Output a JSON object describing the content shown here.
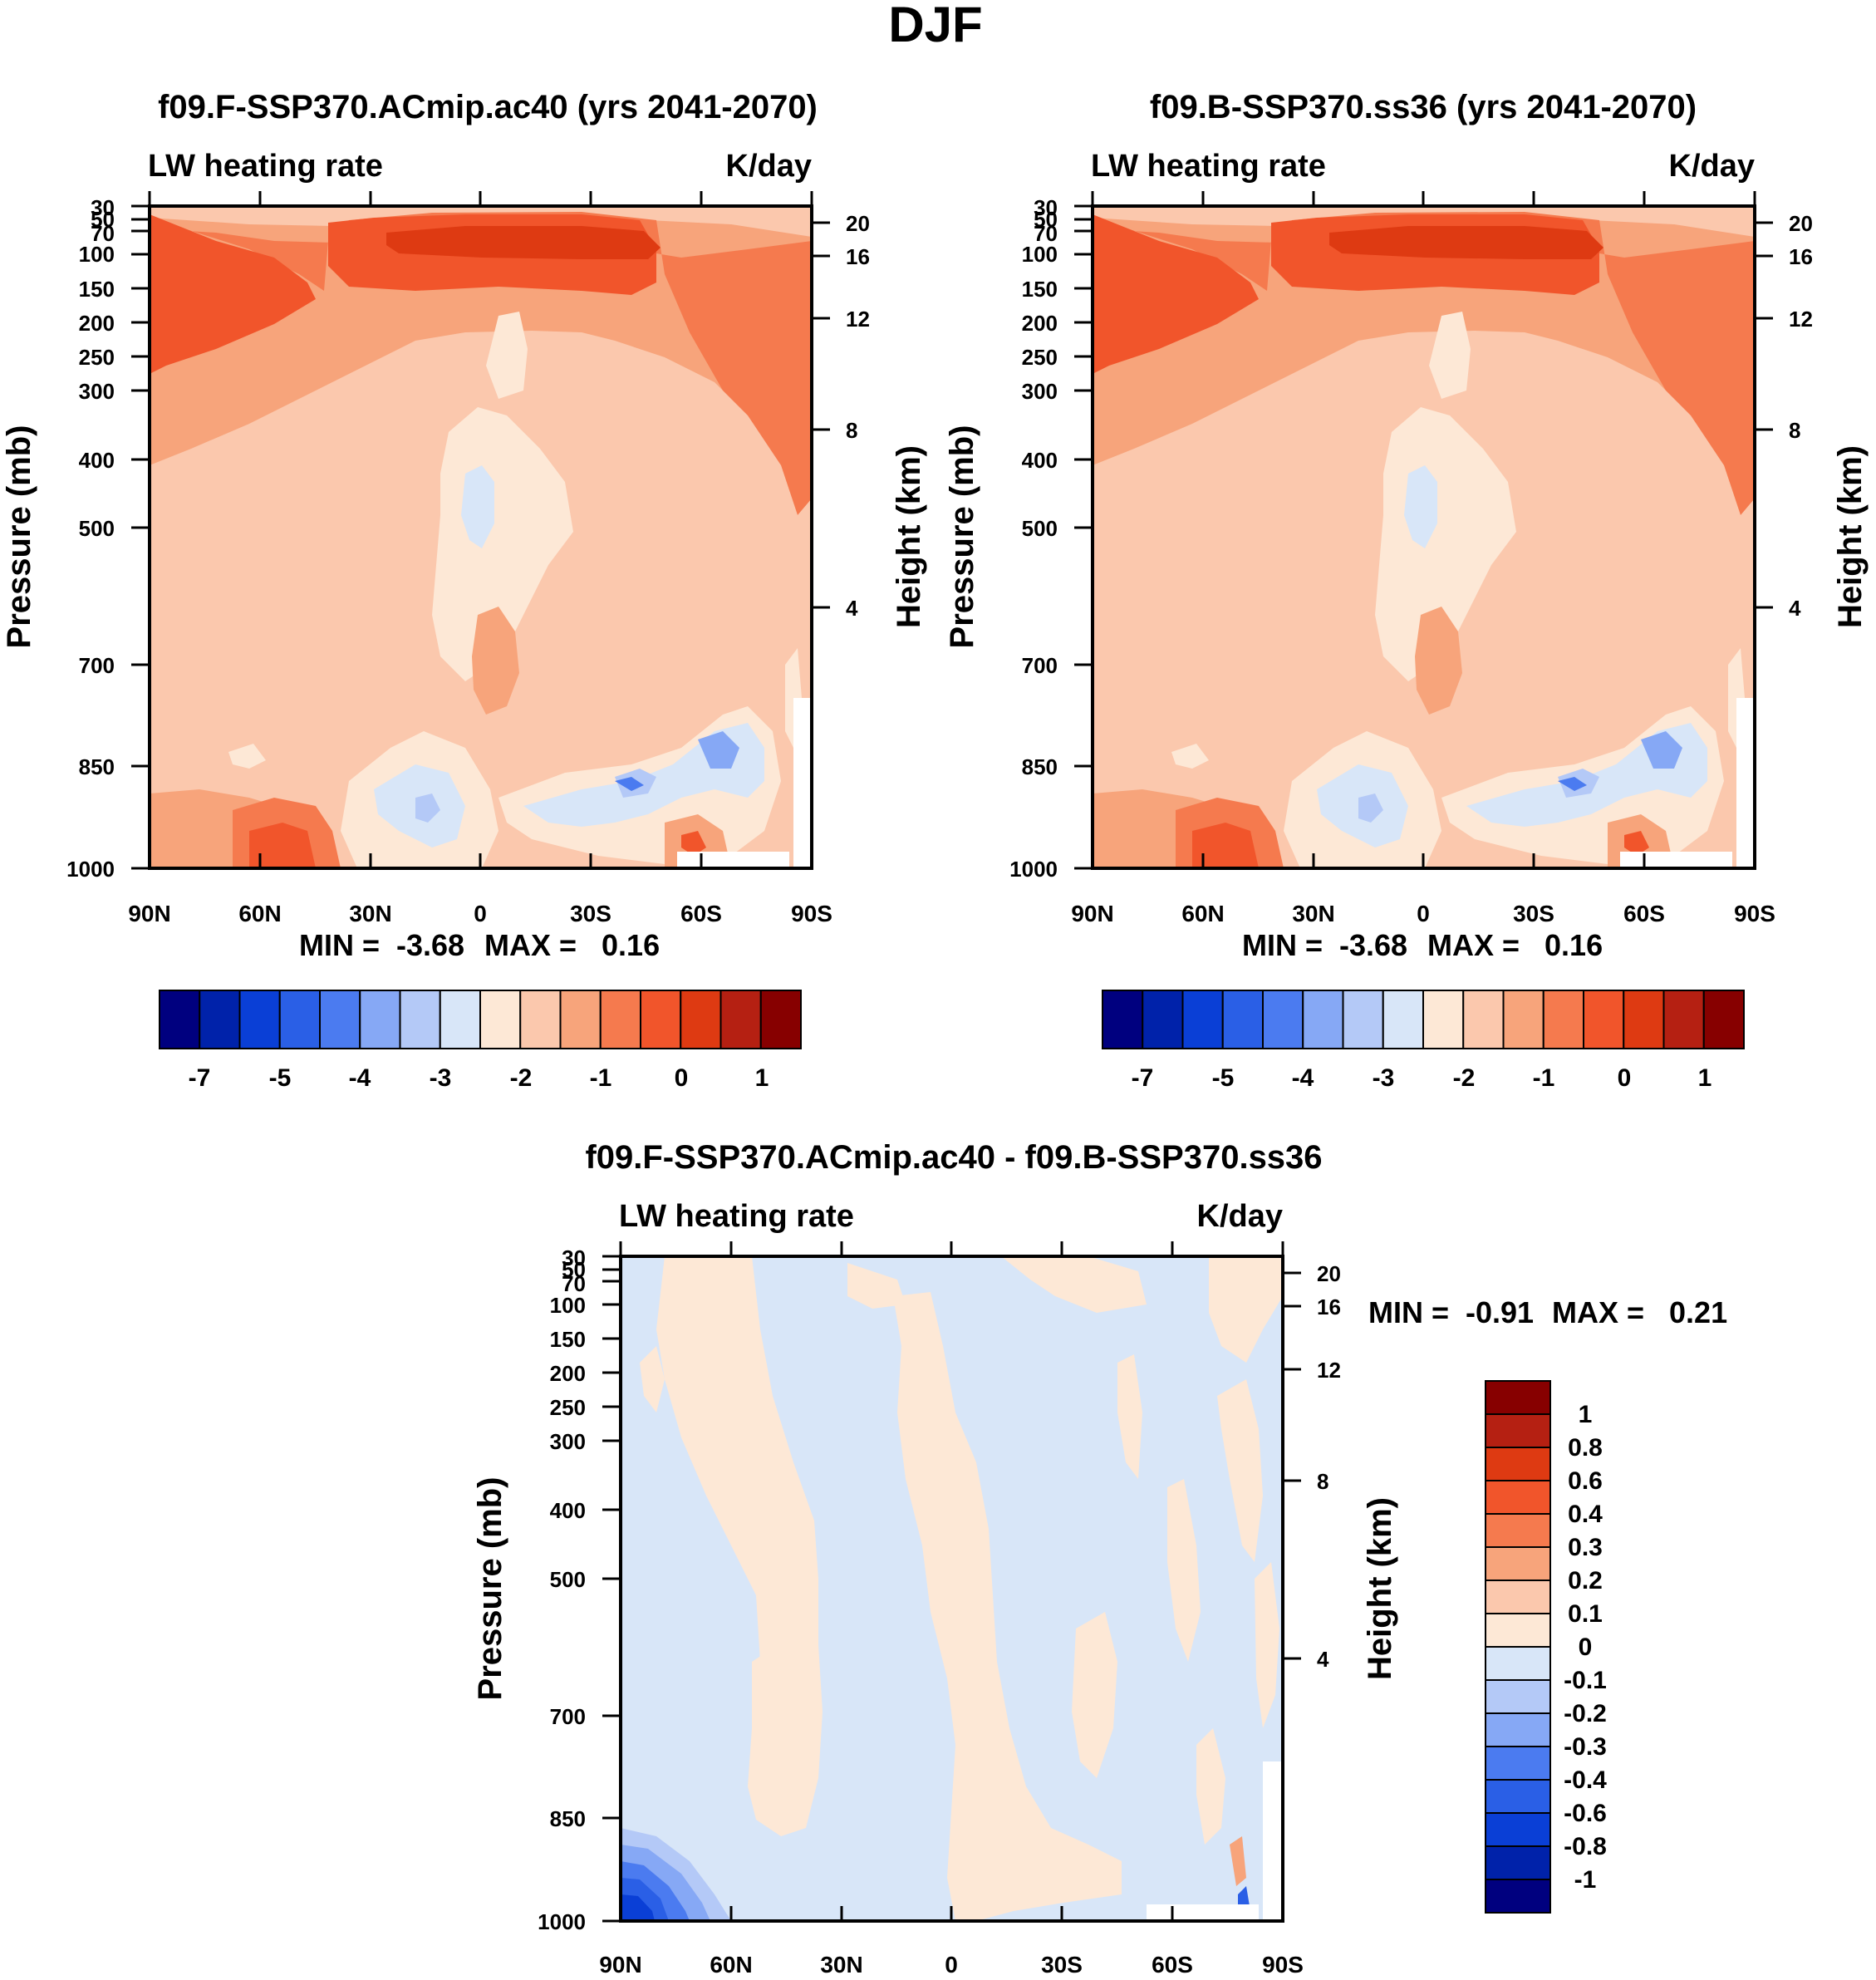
{
  "figure": {
    "title": "DJF"
  },
  "colors": {
    "main_scale": [
      "#00007f",
      "#0022aa",
      "#0a3fd6",
      "#2a5fe6",
      "#4b7bf0",
      "#86a8f5",
      "#b4c9f7",
      "#d8e6f8",
      "#fde8d6",
      "#fbc8ad",
      "#f7a47b",
      "#f57a4e",
      "#f1552b",
      "#de3a12",
      "#b52012",
      "#870000"
    ],
    "diff_scale": [
      "#00007f",
      "#0022aa",
      "#0a3fd6",
      "#2a5fe6",
      "#4b7bf0",
      "#86a8f5",
      "#b4c9f7",
      "#d8e6f8",
      "#fde8d6",
      "#fbc8ad",
      "#f7a47b",
      "#f57a4e",
      "#f1552b",
      "#de3a12",
      "#b52012",
      "#870000"
    ]
  },
  "chart_data": [
    {
      "id": "panel_a",
      "type": "heatmap",
      "title": "f09.F-SSP370.ACmip.ac40 (yrs 2041-2070)",
      "left_label": "LW heating rate",
      "right_label": "K/day",
      "ylabel": "Pressure (mb)",
      "y2label": "Height (km)",
      "x_ticks": [
        "90N",
        "60N",
        "30N",
        "0",
        "30S",
        "60S",
        "90S"
      ],
      "x_values": [
        90,
        60,
        30,
        0,
        -30,
        -60,
        -90
      ],
      "xlim": [
        90,
        -90
      ],
      "y_ticks": [
        "30",
        "50",
        "70",
        "100",
        "150",
        "200",
        "250",
        "300",
        "400",
        "500",
        "700",
        "850",
        "1000"
      ],
      "y_values": [
        30,
        50,
        70,
        100,
        150,
        200,
        250,
        300,
        400,
        500,
        700,
        850,
        1000
      ],
      "ylim": [
        30,
        1000
      ],
      "height_ticks": [
        "20",
        "16",
        "12",
        "8",
        "4"
      ],
      "height_values": [
        20,
        16,
        12,
        8,
        4
      ],
      "min_text": "MIN =  -3.68",
      "max_text": "MAX =   0.16",
      "min": -3.68,
      "max": 0.16,
      "colorbar_labels": [
        "-7",
        "-5",
        "-4",
        "-3",
        "-2",
        "-1",
        "0",
        "1"
      ],
      "colorbar_orientation": "horizontal"
    },
    {
      "id": "panel_b",
      "type": "heatmap",
      "title": "f09.B-SSP370.ss36 (yrs 2041-2070)",
      "left_label": "LW heating rate",
      "right_label": "K/day",
      "ylabel": "Pressure (mb)",
      "y2label": "Height (km)",
      "x_ticks": [
        "90N",
        "60N",
        "30N",
        "0",
        "30S",
        "60S",
        "90S"
      ],
      "x_values": [
        90,
        60,
        30,
        0,
        -30,
        -60,
        -90
      ],
      "xlim": [
        90,
        -90
      ],
      "y_ticks": [
        "30",
        "50",
        "70",
        "100",
        "150",
        "200",
        "250",
        "300",
        "400",
        "500",
        "700",
        "850",
        "1000"
      ],
      "y_values": [
        30,
        50,
        70,
        100,
        150,
        200,
        250,
        300,
        400,
        500,
        700,
        850,
        1000
      ],
      "ylim": [
        30,
        1000
      ],
      "height_ticks": [
        "20",
        "16",
        "12",
        "8",
        "4"
      ],
      "height_values": [
        20,
        16,
        12,
        8,
        4
      ],
      "min_text": "MIN =  -3.68",
      "max_text": "MAX =   0.16",
      "min": -3.68,
      "max": 0.16,
      "colorbar_labels": [
        "-7",
        "-5",
        "-4",
        "-3",
        "-2",
        "-1",
        "0",
        "1"
      ],
      "colorbar_orientation": "horizontal"
    },
    {
      "id": "panel_diff",
      "type": "heatmap",
      "title": "f09.F-SSP370.ACmip.ac40 - f09.B-SSP370.ss36",
      "left_label": "LW heating rate",
      "right_label": "K/day",
      "ylabel": "Pressure (mb)",
      "y2label": "Height (km)",
      "x_ticks": [
        "90N",
        "60N",
        "30N",
        "0",
        "30S",
        "60S",
        "90S"
      ],
      "x_values": [
        90,
        60,
        30,
        0,
        -30,
        -60,
        -90
      ],
      "xlim": [
        90,
        -90
      ],
      "y_ticks": [
        "30",
        "50",
        "70",
        "100",
        "150",
        "200",
        "250",
        "300",
        "400",
        "500",
        "700",
        "850",
        "1000"
      ],
      "y_values": [
        30,
        50,
        70,
        100,
        150,
        200,
        250,
        300,
        400,
        500,
        700,
        850,
        1000
      ],
      "ylim": [
        30,
        1000
      ],
      "height_ticks": [
        "20",
        "16",
        "12",
        "8",
        "4"
      ],
      "height_values": [
        20,
        16,
        12,
        8,
        4
      ],
      "min_text": "MIN =  -0.91",
      "max_text": "MAX =   0.21",
      "min": -0.91,
      "max": 0.21,
      "colorbar_labels": [
        "1",
        "0.8",
        "0.6",
        "0.4",
        "0.3",
        "0.2",
        "0.1",
        "0",
        "-0.1",
        "-0.2",
        "-0.3",
        "-0.4",
        "-0.6",
        "-0.8",
        "-1"
      ],
      "colorbar_orientation": "vertical"
    }
  ]
}
